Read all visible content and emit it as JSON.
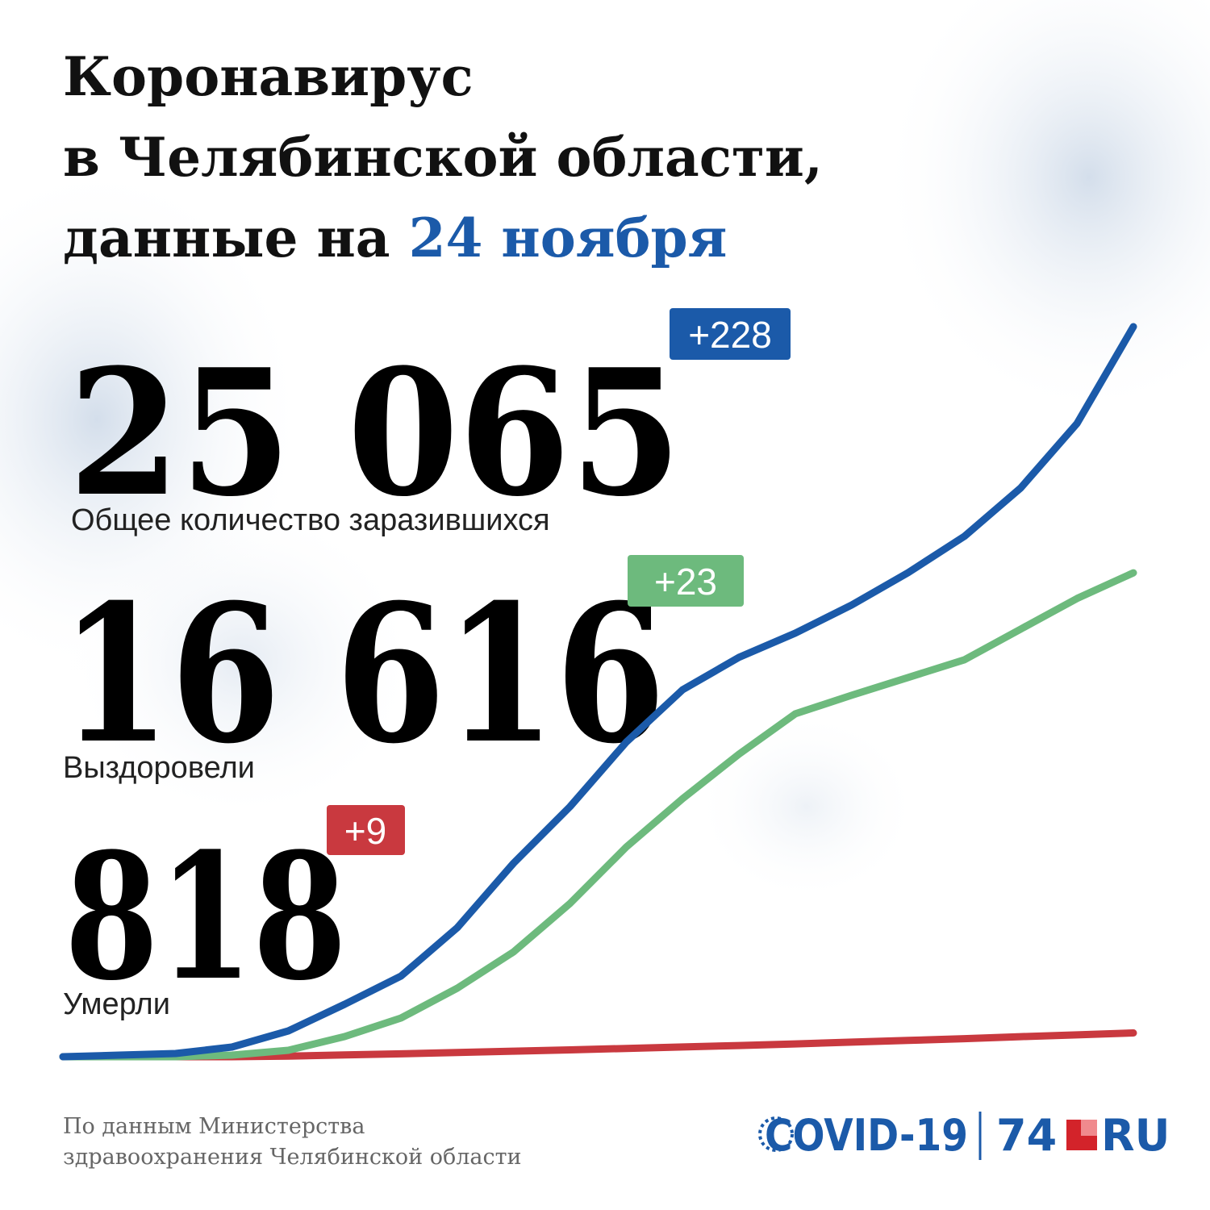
{
  "header": {
    "lines": [
      "Коронавирус",
      "в Челябинской области,",
      "данные на "
    ],
    "date": "24 ноября"
  },
  "stats": [
    {
      "value": "25 065",
      "delta": "+228",
      "label": "Общее количество заразившихся"
    },
    {
      "value": "16 616",
      "delta": "+23",
      "label": "Выздоровели"
    },
    {
      "value": "818",
      "delta": "+9",
      "label": "Умерли"
    }
  ],
  "source": [
    "По данным Министерства",
    "здравоохранения Челябинской области"
  ],
  "logo": {
    "covid": "COVID-19",
    "site": "74",
    "domain": "RU"
  },
  "chart_data": {
    "type": "line",
    "categories": [
      null,
      null,
      null,
      null,
      null,
      null,
      null,
      null,
      null,
      null,
      null,
      null,
      null,
      null,
      null,
      null,
      null,
      null,
      null,
      null
    ],
    "ylim": [
      0,
      25065
    ],
    "series": [
      {
        "color": "#1b5aa9",
        "values": [
          0,
          55,
          111,
          332,
          886,
          1800,
          2770,
          4432,
          6648,
          8587,
          10803,
          12603,
          13711,
          14542,
          15511,
          16619,
          17866,
          19528,
          21744,
          25065
        ]
      },
      {
        "color": "#6dba7d",
        "values": [
          0,
          0,
          0,
          55,
          222,
          693,
          1330,
          2355,
          3601,
          5263,
          7202,
          8864,
          10388,
          11773,
          12410,
          13019,
          13628,
          14681,
          15733,
          16616
        ]
      },
      {
        "color": "#c9393f",
        "values": [
          0,
          0,
          0,
          0,
          20,
          60,
          100,
          145,
          190,
          235,
          285,
          335,
          385,
          440,
          500,
          560,
          620,
          690,
          750,
          818
        ]
      }
    ]
  }
}
